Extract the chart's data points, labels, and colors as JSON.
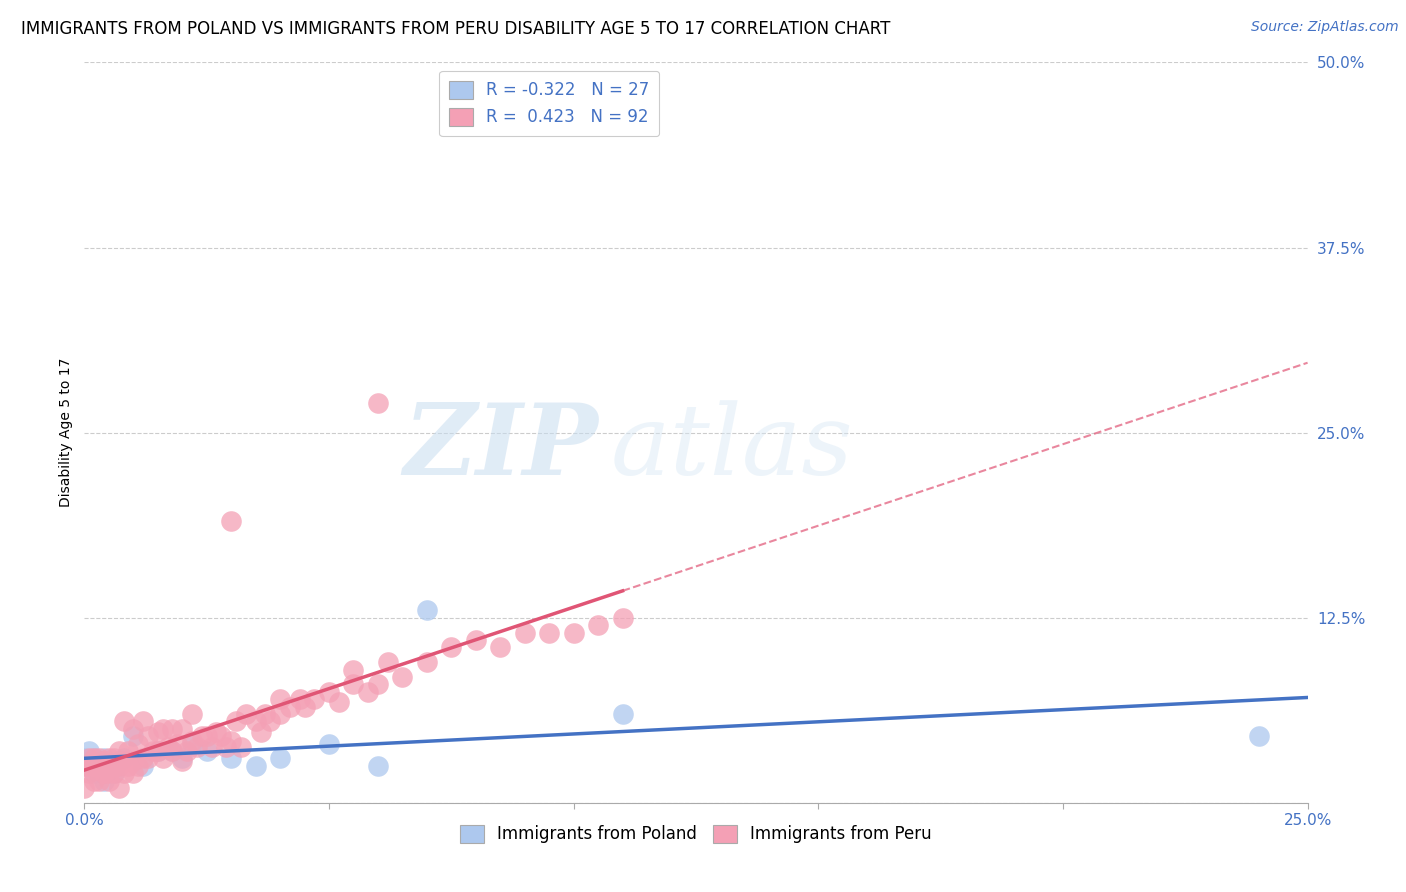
{
  "title": "IMMIGRANTS FROM POLAND VS IMMIGRANTS FROM PERU DISABILITY AGE 5 TO 17 CORRELATION CHART",
  "source": "Source: ZipAtlas.com",
  "ylabel": "Disability Age 5 to 17",
  "xlim": [
    0.0,
    0.25
  ],
  "ylim": [
    0.0,
    0.5
  ],
  "yticks": [
    0.0,
    0.125,
    0.25,
    0.375,
    0.5
  ],
  "yticklabels": [
    "",
    "12.5%",
    "25.0%",
    "37.5%",
    "50.0%"
  ],
  "legend_labels": [
    "Immigrants from Poland",
    "Immigrants from Peru"
  ],
  "poland_color": "#adc8ee",
  "peru_color": "#f4a0b5",
  "poland_line_color": "#4472c4",
  "peru_line_color": "#e05575",
  "poland_R": -0.322,
  "poland_N": 27,
  "peru_R": 0.423,
  "peru_N": 92,
  "background_color": "#ffffff",
  "grid_color": "#cccccc",
  "watermark_zip": "ZIP",
  "watermark_atlas": "atlas",
  "title_fontsize": 12,
  "axis_label_fontsize": 10,
  "tick_fontsize": 11,
  "legend_fontsize": 12,
  "source_fontsize": 10
}
